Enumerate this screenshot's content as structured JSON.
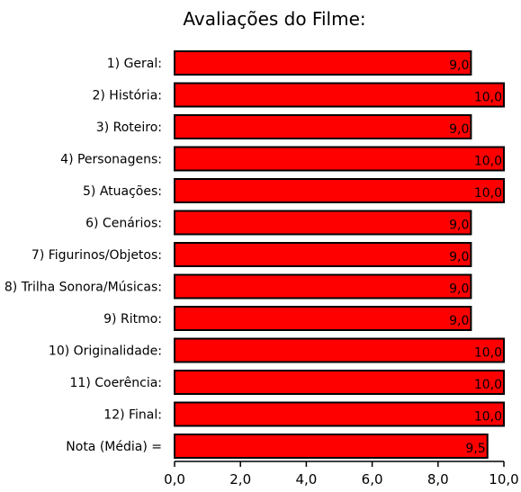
{
  "chart_data": {
    "type": "bar",
    "orientation": "horizontal",
    "title": "Avaliações do Filme:",
    "categories": [
      "1) Geral:",
      "2) História:",
      "3) Roteiro:",
      "4) Personagens:",
      "5) Atuações:",
      "6) Cenários:",
      "7) Figurinos/Objetos:",
      "8) Trilha Sonora/Músicas:",
      "9) Ritmo:",
      "10) Originalidade:",
      "11) Coerência:",
      "12) Final:",
      "Nota (Média) ="
    ],
    "values": [
      9.0,
      10.0,
      9.0,
      10.0,
      10.0,
      9.0,
      9.0,
      9.0,
      9.0,
      10.0,
      10.0,
      10.0,
      9.5
    ],
    "value_labels": [
      "9,0",
      "10,0",
      "9,0",
      "10,0",
      "10,0",
      "9,0",
      "9,0",
      "9,0",
      "9,0",
      "10,0",
      "10,0",
      "10,0",
      "9,5"
    ],
    "xlim": [
      0,
      10
    ],
    "xticks": [
      0,
      2,
      4,
      6,
      8,
      10
    ],
    "xtick_labels": [
      "0,0",
      "2,0",
      "4,0",
      "6,0",
      "8,0",
      "10,0"
    ],
    "xlabel": "",
    "ylabel": "",
    "grid": false,
    "legend": "none",
    "bar_color": "#ff0000",
    "bar_border_color": "#000000"
  }
}
